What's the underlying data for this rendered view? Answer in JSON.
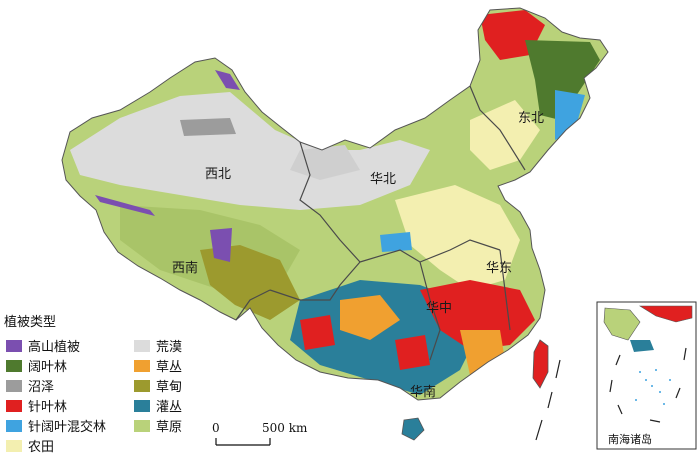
{
  "map": {
    "regions": {
      "northwest": "西北",
      "north": "华北",
      "northeast": "东北",
      "southwest": "西南",
      "east": "华东",
      "central": "华中",
      "south": "华南"
    },
    "legend": {
      "title": "植被类型",
      "items": [
        {
          "id": "alpine",
          "label": "高山植被",
          "color": "#7b4fb0"
        },
        {
          "id": "broadleaf",
          "label": "阔叶林",
          "color": "#4f7a2e"
        },
        {
          "id": "marsh",
          "label": "沼泽",
          "color": "#9c9c9c"
        },
        {
          "id": "conifer",
          "label": "针叶林",
          "color": "#e02020"
        },
        {
          "id": "mixed",
          "label": "针阔叶混交林",
          "color": "#3fa3e0"
        },
        {
          "id": "cropland",
          "label": "农田",
          "color": "#f3efb0"
        },
        {
          "id": "desert",
          "label": "荒漠",
          "color": "#dcdcdc"
        },
        {
          "id": "grass-tussock",
          "label": "草丛",
          "color": "#f0a030"
        },
        {
          "id": "meadow",
          "label": "草甸",
          "color": "#9c9a2e"
        },
        {
          "id": "shrub",
          "label": "灌丛",
          "color": "#2a7f9a"
        },
        {
          "id": "steppe",
          "label": "草原",
          "color": "#b9d27a"
        }
      ]
    },
    "scale_bar": {
      "zero": "0",
      "distance": "500 km"
    },
    "inset": {
      "label": "南海诸岛"
    }
  }
}
